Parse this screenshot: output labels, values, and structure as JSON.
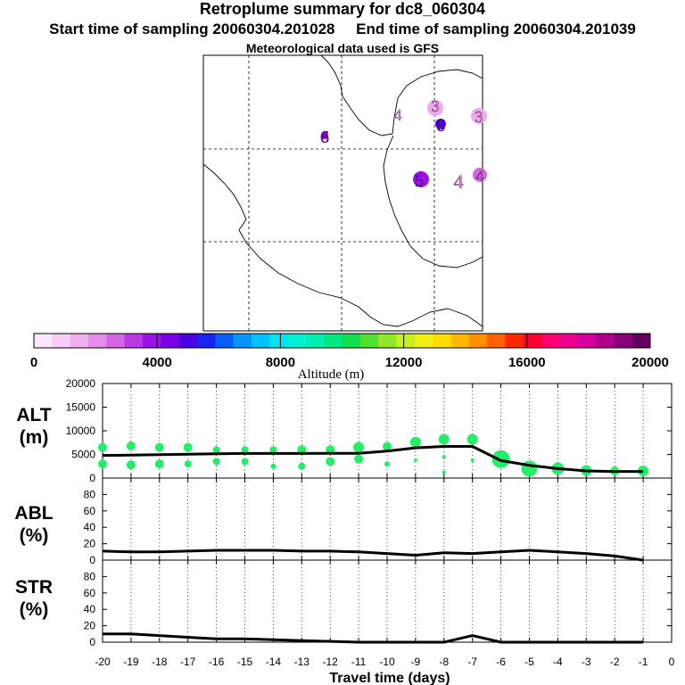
{
  "header": {
    "title": "Retroplume summary for dc8_060304",
    "start_label": "Start time of sampling 20060304.201028",
    "end_label": "End time of sampling 20060304.201039",
    "met_label": "Meteorological data used is GFS"
  },
  "colorbar": {
    "ticks": [
      "0",
      "4000",
      "8000",
      "12000",
      "16000",
      "20000"
    ],
    "label": "Altitude (m)",
    "colors": [
      "#ffe6ff",
      "#f7ccf7",
      "#efb0ef",
      "#e38de8",
      "#d466e3",
      "#bb3ae3",
      "#9a14e6",
      "#7a00e6",
      "#4a00e0",
      "#1a24f0",
      "#0a5cf8",
      "#0894fa",
      "#00c2f8",
      "#00e4ee",
      "#00f2d0",
      "#00eeb0",
      "#00e882",
      "#10e050",
      "#50e030",
      "#90e828",
      "#c8f020",
      "#f0f010",
      "#ffdc00",
      "#ffb800",
      "#ff9000",
      "#ff6000",
      "#ff2800",
      "#ff0030",
      "#ff0070",
      "#f00090",
      "#d8009a",
      "#b0008a",
      "#8a0078",
      "#620062"
    ]
  },
  "map": {
    "numbers": [
      {
        "label": "6",
        "color": "#8a00e0"
      },
      {
        "label": "4",
        "color": "#ee99ee"
      },
      {
        "label": "3",
        "color": "#ee99ee"
      },
      {
        "label": "6",
        "color": "#5a00e6"
      },
      {
        "label": "3",
        "color": "#ee99ee"
      },
      {
        "label": "5",
        "color": "#9a14e6"
      },
      {
        "label": "4",
        "color": "#e080e8"
      },
      {
        "label": "4",
        "color": "#d466e3"
      }
    ]
  },
  "chart_data": [
    {
      "type": "line",
      "panel": "altitude",
      "ylabel_line1": "ALT",
      "ylabel_line2": "(m)",
      "ylim": [
        0,
        20000
      ],
      "yticks": [
        "0",
        "5000",
        "10000",
        "15000",
        "20000"
      ],
      "x": [
        -20,
        -19,
        -18,
        -17,
        -16,
        -15,
        -14,
        -13,
        -12,
        -11,
        -10,
        -9,
        -8,
        -7,
        -6,
        -5,
        -4,
        -3,
        -2,
        -1
      ],
      "median_altitude": [
        4800,
        4850,
        4950,
        5050,
        5150,
        5200,
        5200,
        5200,
        5250,
        5250,
        5700,
        6400,
        6700,
        6700,
        3700,
        2700,
        2000,
        1500,
        1400,
        1400
      ],
      "marker_color": "#22ee66",
      "scatter_points": [
        {
          "x": -20,
          "y": 6500,
          "s": 5
        },
        {
          "x": -20,
          "y": 3000,
          "s": 5
        },
        {
          "x": -19,
          "y": 6800,
          "s": 5
        },
        {
          "x": -19,
          "y": 2800,
          "s": 5
        },
        {
          "x": -18,
          "y": 6500,
          "s": 5
        },
        {
          "x": -18,
          "y": 3000,
          "s": 5
        },
        {
          "x": -17,
          "y": 6500,
          "s": 5
        },
        {
          "x": -17,
          "y": 3000,
          "s": 4
        },
        {
          "x": -16,
          "y": 6000,
          "s": 4
        },
        {
          "x": -16,
          "y": 3500,
          "s": 4
        },
        {
          "x": -15,
          "y": 6000,
          "s": 4
        },
        {
          "x": -15,
          "y": 3500,
          "s": 4
        },
        {
          "x": -14,
          "y": 6000,
          "s": 4
        },
        {
          "x": -14,
          "y": 2500,
          "s": 3
        },
        {
          "x": -13,
          "y": 6000,
          "s": 5
        },
        {
          "x": -13,
          "y": 2500,
          "s": 4
        },
        {
          "x": -12,
          "y": 6000,
          "s": 5
        },
        {
          "x": -12,
          "y": 3500,
          "s": 5
        },
        {
          "x": -11,
          "y": 6500,
          "s": 6
        },
        {
          "x": -11,
          "y": 4000,
          "s": 5
        },
        {
          "x": -10,
          "y": 6700,
          "s": 5
        },
        {
          "x": -10,
          "y": 3000,
          "s": 3
        },
        {
          "x": -9,
          "y": 7600,
          "s": 6
        },
        {
          "x": -9,
          "y": 3800,
          "s": 2
        },
        {
          "x": -8,
          "y": 8200,
          "s": 6
        },
        {
          "x": -8,
          "y": 4500,
          "s": 2
        },
        {
          "x": -8,
          "y": 1200,
          "s": 2
        },
        {
          "x": -7,
          "y": 8200,
          "s": 6
        },
        {
          "x": -7,
          "y": 3800,
          "s": 2
        },
        {
          "x": -6,
          "y": 4000,
          "s": 10
        },
        {
          "x": -5,
          "y": 2000,
          "s": 9
        },
        {
          "x": -4,
          "y": 2000,
          "s": 7
        },
        {
          "x": -3,
          "y": 1600,
          "s": 6
        },
        {
          "x": -2,
          "y": 1500,
          "s": 5
        },
        {
          "x": -1,
          "y": 1500,
          "s": 6
        }
      ]
    },
    {
      "type": "line",
      "panel": "abl",
      "ylabel_line1": "ABL",
      "ylabel_line2": "(%)",
      "ylim": [
        0,
        100
      ],
      "yticks": [
        "0",
        "20",
        "40",
        "60",
        "80"
      ],
      "x": [
        -20,
        -19,
        -18,
        -17,
        -16,
        -15,
        -14,
        -13,
        -12,
        -11,
        -10,
        -9,
        -8,
        -7,
        -6,
        -5,
        -4,
        -3,
        -2,
        -1
      ],
      "values": [
        11,
        10,
        10,
        11,
        12,
        12,
        12,
        11,
        11,
        10,
        8,
        6,
        9,
        8,
        10,
        12,
        10,
        8,
        5,
        0
      ]
    },
    {
      "type": "line",
      "panel": "str",
      "ylabel_line1": "STR",
      "ylabel_line2": "(%)",
      "ylim": [
        0,
        100
      ],
      "yticks": [
        "0",
        "20",
        "40",
        "60",
        "80"
      ],
      "x": [
        -20,
        -19,
        -18,
        -17,
        -16,
        -15,
        -14,
        -13,
        -12,
        -11,
        -10,
        -9,
        -8,
        -7,
        -6,
        -5,
        -4,
        -3,
        -2,
        -1
      ],
      "values": [
        10,
        10,
        8,
        6,
        4,
        4,
        3,
        2,
        1,
        0,
        0,
        0,
        0,
        8,
        0,
        0,
        0,
        0,
        0,
        0
      ]
    }
  ],
  "xaxis": {
    "label": "Travel time (days)",
    "ticks": [
      "-20",
      "-19",
      "-18",
      "-17",
      "-16",
      "-15",
      "-14",
      "-13",
      "-12",
      "-11",
      "-10",
      "-9",
      "-8",
      "-7",
      "-6",
      "-5",
      "-4",
      "-3",
      "-2",
      "-1",
      "0"
    ]
  }
}
